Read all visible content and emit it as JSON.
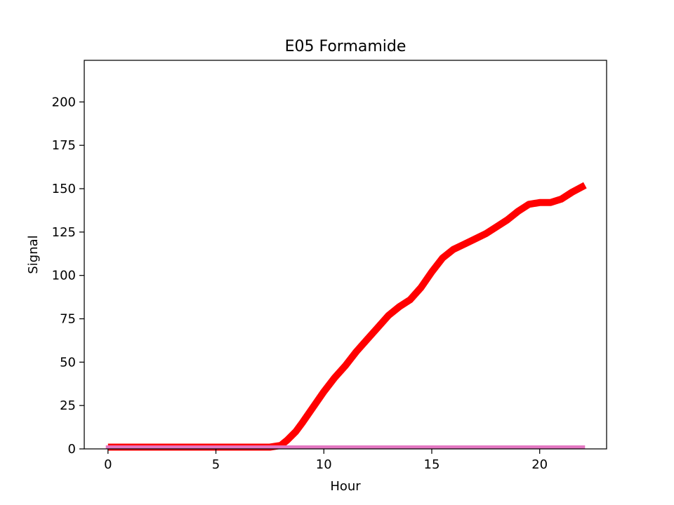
{
  "chart_data": {
    "type": "line",
    "title": "E05 Formamide",
    "xlabel": "Hour",
    "ylabel": "Signal",
    "xlim": [
      -1.1,
      23.1
    ],
    "ylim": [
      0,
      224
    ],
    "xticks": [
      0,
      5,
      10,
      15,
      20
    ],
    "yticks": [
      0,
      25,
      50,
      75,
      100,
      125,
      150,
      175,
      200
    ],
    "grid": false,
    "legend": "none",
    "series": [
      {
        "color": "#ff0000",
        "x": [
          0,
          1,
          2,
          3,
          4,
          5,
          6,
          7,
          7.5,
          8,
          8.3,
          8.7,
          9,
          9.5,
          10,
          10.5,
          11,
          11.5,
          12,
          12.5,
          13,
          13.5,
          14,
          14.5,
          15,
          15.5,
          16,
          16.5,
          17,
          17.5,
          18,
          18.5,
          19,
          19.5,
          20,
          20.5,
          21,
          21.5,
          22.1
        ],
        "y": [
          1,
          1,
          1,
          1,
          1,
          1,
          1,
          1,
          1,
          2,
          5,
          10,
          15,
          24,
          33,
          41,
          48,
          56,
          63,
          70,
          77,
          82,
          86,
          93,
          102,
          110,
          115,
          118,
          121,
          124,
          128,
          132,
          137,
          141,
          142,
          142,
          144,
          148,
          152
        ]
      },
      {
        "color": "#e377c2",
        "x": [
          -0.1,
          22.1
        ],
        "y": [
          1,
          1
        ]
      }
    ]
  }
}
